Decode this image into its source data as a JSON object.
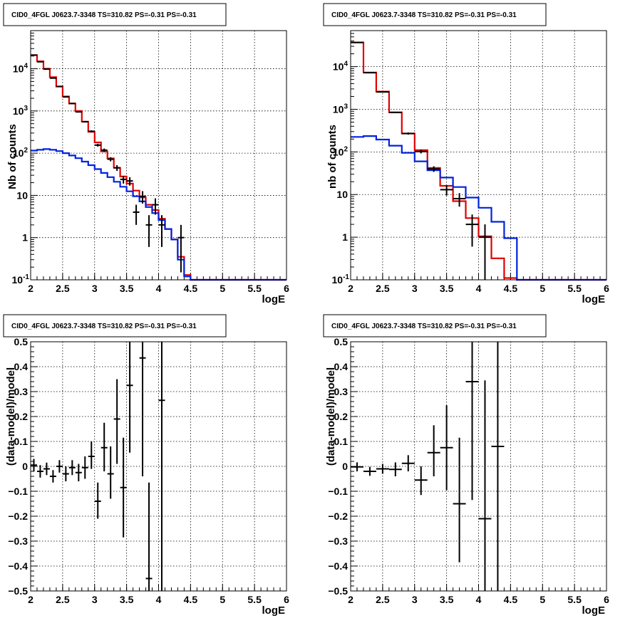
{
  "pad_title": "CID0_4FGL J0623.7-3348 TS=310.82 PS=-0.31 PS=-0.31",
  "colors": {
    "data": "#000000",
    "total_model": "#e00000",
    "background_model": "#0022dd"
  },
  "chart_data": [
    {
      "type": "line",
      "panel": "top-left",
      "title": "CID0_4FGL J0623.7-3348 TS=310.82 PS=-0.31 PS=-0.31",
      "xlabel": "logE",
      "ylabel": "Nb of counts",
      "xlim": [
        2,
        6
      ],
      "ylim": [
        0.1,
        80000
      ],
      "log_y": true,
      "grid": true,
      "x_ticks": [
        "2",
        "2.5",
        "3",
        "3.5",
        "4",
        "4.5",
        "5",
        "5.5",
        "6"
      ],
      "y_ticks": [
        {
          "v": 0.1,
          "base": "10",
          "exp": "-1"
        },
        {
          "v": 1,
          "label": "1"
        },
        {
          "v": 10,
          "label": "10"
        },
        {
          "v": 100,
          "base": "10",
          "exp": "2"
        },
        {
          "v": 1000,
          "base": "10",
          "exp": "3"
        },
        {
          "v": 10000,
          "base": "10",
          "exp": "4"
        }
      ],
      "bin_edges": [
        2.0,
        2.1,
        2.2,
        2.3,
        2.4,
        2.5,
        2.6,
        2.7,
        2.8,
        2.9,
        3.0,
        3.1,
        3.2,
        3.3,
        3.4,
        3.5,
        3.6,
        3.7,
        3.8,
        3.9,
        4.0,
        4.1,
        4.2,
        4.3,
        4.4,
        4.5,
        4.6,
        4.7,
        4.8,
        4.9,
        5.0,
        5.1,
        5.2,
        5.3,
        5.4,
        5.5,
        5.6,
        5.7,
        5.8,
        5.9,
        6.0
      ],
      "series": [
        {
          "role": "total_model",
          "kind": "hist",
          "values": [
            21000,
            15000,
            10000,
            6300,
            3800,
            2200,
            1500,
            1000,
            560,
            320,
            180,
            110,
            75,
            45,
            28,
            19,
            13,
            9,
            6,
            4.5,
            2.8,
            1.6,
            0.9,
            0.35,
            0.13,
            0.1,
            0.1,
            0.1,
            0.1,
            0.1,
            0.1,
            0.1,
            0.1,
            0.1,
            0.1,
            0.1,
            0.1,
            0.1,
            0.1,
            0.1
          ]
        },
        {
          "role": "background_model",
          "kind": "hist",
          "values": [
            115,
            120,
            125,
            120,
            112,
            100,
            88,
            76,
            63,
            52,
            42,
            34,
            27,
            21,
            16,
            12.5,
            9.5,
            7.2,
            5.3,
            3.8,
            2.6,
            1.6,
            0.9,
            0.3,
            0.12,
            0.1,
            0.1,
            0.1,
            0.1,
            0.1,
            0.1,
            0.1,
            0.1,
            0.1,
            0.1,
            0.1,
            0.1,
            0.1,
            0.1,
            0.1
          ]
        },
        {
          "role": "data",
          "kind": "points",
          "points": [
            {
              "x": 2.05,
              "y": 21000,
              "lo": 20800,
              "hi": 21200
            },
            {
              "x": 2.15,
              "y": 14600,
              "lo": 14450,
              "hi": 14750
            },
            {
              "x": 2.25,
              "y": 9800,
              "lo": 9700,
              "hi": 9900
            },
            {
              "x": 2.35,
              "y": 6000,
              "lo": 5920,
              "hi": 6080
            },
            {
              "x": 2.45,
              "y": 3800,
              "lo": 3740,
              "hi": 3860
            },
            {
              "x": 2.55,
              "y": 2150,
              "lo": 2100,
              "hi": 2200
            },
            {
              "x": 2.65,
              "y": 1500,
              "lo": 1460,
              "hi": 1540
            },
            {
              "x": 2.75,
              "y": 950,
              "lo": 920,
              "hi": 980
            },
            {
              "x": 2.85,
              "y": 555,
              "lo": 530,
              "hi": 580
            },
            {
              "x": 2.95,
              "y": 330,
              "lo": 312,
              "hi": 348
            },
            {
              "x": 3.05,
              "y": 155,
              "lo": 143,
              "hi": 167
            },
            {
              "x": 3.15,
              "y": 118,
              "lo": 107,
              "hi": 129
            },
            {
              "x": 3.25,
              "y": 72,
              "lo": 64,
              "hi": 80
            },
            {
              "x": 3.35,
              "y": 45,
              "lo": 38,
              "hi": 52
            },
            {
              "x": 3.45,
              "y": 24,
              "lo": 19,
              "hi": 29
            },
            {
              "x": 3.55,
              "y": 22,
              "lo": 17,
              "hi": 27
            },
            {
              "x": 3.65,
              "y": 4,
              "lo": 2,
              "hi": 6
            },
            {
              "x": 3.75,
              "y": 9.5,
              "lo": 6.4,
              "hi": 12.6
            },
            {
              "x": 3.85,
              "y": 2,
              "lo": 0.6,
              "hi": 3.4
            },
            {
              "x": 3.95,
              "y": 6,
              "lo": 3.5,
              "hi": 8.5
            },
            {
              "x": 4.05,
              "y": 2,
              "lo": 0.6,
              "hi": 3.4
            },
            {
              "x": 4.35,
              "y": 1,
              "lo": 0.15,
              "hi": 2
            }
          ]
        }
      ]
    },
    {
      "type": "line",
      "panel": "top-right",
      "title": "CID0_4FGL J0623.7-3348 TS=310.82 PS=-0.31 PS=-0.31",
      "xlabel": "logE",
      "ylabel": "nb of counts",
      "xlim": [
        2,
        6
      ],
      "ylim": [
        0.1,
        70000
      ],
      "log_y": true,
      "grid": true,
      "x_ticks": [
        "2",
        "2.5",
        "3",
        "3.5",
        "4",
        "4.5",
        "5",
        "5.5",
        "6"
      ],
      "y_ticks": [
        {
          "v": 0.1,
          "base": "10",
          "exp": "-1"
        },
        {
          "v": 1,
          "label": "1"
        },
        {
          "v": 10,
          "label": "10"
        },
        {
          "v": 100,
          "base": "10",
          "exp": "2"
        },
        {
          "v": 1000,
          "base": "10",
          "exp": "3"
        },
        {
          "v": 10000,
          "base": "10",
          "exp": "4"
        }
      ],
      "bin_edges": [
        2.0,
        2.2,
        2.4,
        2.6,
        2.8,
        3.0,
        3.2,
        3.4,
        3.6,
        3.8,
        4.0,
        4.2,
        4.4,
        4.6,
        4.8,
        5.0,
        5.2,
        5.4,
        5.6,
        5.8,
        6.0
      ],
      "series": [
        {
          "role": "total_model",
          "kind": "hist",
          "values": [
            37000,
            7300,
            2600,
            850,
            270,
            110,
            42,
            16,
            7,
            2.8,
            1.05,
            0.32,
            0.11,
            0.1,
            0.1,
            0.1,
            0.1,
            0.1,
            0.1,
            0.1
          ]
        },
        {
          "role": "background_model",
          "kind": "hist",
          "values": [
            225,
            235,
            195,
            140,
            95,
            60,
            37,
            25,
            15,
            8.5,
            4.9,
            2.3,
            0.95,
            0.1,
            0.1,
            0.1,
            0.1,
            0.1,
            0.1,
            0.1
          ]
        },
        {
          "role": "data",
          "kind": "points",
          "points": [
            {
              "x": 2.1,
              "y": 37000,
              "lo": 36800,
              "hi": 37200
            },
            {
              "x": 2.3,
              "y": 7200,
              "lo": 7120,
              "hi": 7280
            },
            {
              "x": 2.5,
              "y": 2550,
              "lo": 2500,
              "hi": 2600
            },
            {
              "x": 2.7,
              "y": 840,
              "lo": 812,
              "hi": 868
            },
            {
              "x": 2.9,
              "y": 270,
              "lo": 254,
              "hi": 286
            },
            {
              "x": 3.1,
              "y": 102,
              "lo": 92,
              "hi": 112
            },
            {
              "x": 3.3,
              "y": 40,
              "lo": 34,
              "hi": 46
            },
            {
              "x": 3.5,
              "y": 13,
              "lo": 9.5,
              "hi": 16.5
            },
            {
              "x": 3.7,
              "y": 8,
              "lo": 5.2,
              "hi": 10.8
            },
            {
              "x": 3.9,
              "y": 2,
              "lo": 0.6,
              "hi": 3.4
            },
            {
              "x": 4.1,
              "y": 1,
              "lo": 0.1,
              "hi": 2
            }
          ]
        }
      ]
    },
    {
      "type": "scatter",
      "panel": "bottom-left",
      "title": "CID0_4FGL J0623.7-3348 TS=310.82 PS=-0.31 PS=-0.31",
      "xlabel": "logE",
      "ylabel": "(data-model)/model",
      "xlim": [
        2,
        6
      ],
      "ylim": [
        -0.5,
        0.5
      ],
      "log_y": false,
      "grid": true,
      "x_ticks": [
        "2",
        "2.5",
        "3",
        "3.5",
        "4",
        "4.5",
        "5",
        "5.5",
        "6"
      ],
      "y_ticks": [
        {
          "v": -0.5,
          "label": "−0.5"
        },
        {
          "v": -0.4,
          "label": "−0.4"
        },
        {
          "v": -0.3,
          "label": "−0.3"
        },
        {
          "v": -0.2,
          "label": "−0.2"
        },
        {
          "v": -0.1,
          "label": "−0.1"
        },
        {
          "v": 0,
          "label": "0"
        },
        {
          "v": 0.1,
          "label": "0.1"
        },
        {
          "v": 0.2,
          "label": "0.2"
        },
        {
          "v": 0.3,
          "label": "0.3"
        },
        {
          "v": 0.4,
          "label": "0.4"
        },
        {
          "v": 0.5,
          "label": "0.5"
        }
      ],
      "xerr": 0.05,
      "series": [
        {
          "role": "data",
          "kind": "points",
          "points": [
            {
              "x": 2.05,
              "y": 0.005,
              "lo": -0.02,
              "hi": 0.03
            },
            {
              "x": 2.15,
              "y": -0.02,
              "lo": -0.045,
              "hi": 0.005
            },
            {
              "x": 2.25,
              "y": -0.01,
              "lo": -0.035,
              "hi": 0.015
            },
            {
              "x": 2.35,
              "y": -0.04,
              "lo": -0.065,
              "hi": -0.015
            },
            {
              "x": 2.45,
              "y": 0.0,
              "lo": -0.025,
              "hi": 0.025
            },
            {
              "x": 2.55,
              "y": -0.03,
              "lo": -0.06,
              "hi": 0.0
            },
            {
              "x": 2.65,
              "y": -0.005,
              "lo": -0.035,
              "hi": 0.025
            },
            {
              "x": 2.75,
              "y": -0.025,
              "lo": -0.06,
              "hi": 0.01
            },
            {
              "x": 2.85,
              "y": -0.005,
              "lo": -0.05,
              "hi": 0.04
            },
            {
              "x": 2.95,
              "y": 0.04,
              "lo": -0.01,
              "hi": 0.1
            },
            {
              "x": 3.05,
              "y": -0.14,
              "lo": -0.21,
              "hi": -0.065
            },
            {
              "x": 3.15,
              "y": 0.075,
              "lo": -0.02,
              "hi": 0.175
            },
            {
              "x": 3.25,
              "y": -0.03,
              "lo": -0.13,
              "hi": 0.08
            },
            {
              "x": 3.35,
              "y": 0.19,
              "lo": 0.01,
              "hi": 0.35
            },
            {
              "x": 3.45,
              "y": -0.085,
              "lo": -0.285,
              "hi": 0.115
            },
            {
              "x": 3.55,
              "y": 0.325,
              "lo": 0.055,
              "hi": 0.5
            },
            {
              "x": 3.75,
              "y": 0.435,
              "lo": -0.04,
              "hi": 0.5
            },
            {
              "x": 3.85,
              "y": -0.45,
              "lo": -0.5,
              "hi": -0.065
            },
            {
              "x": 4.05,
              "y": 0.265,
              "lo": -0.5,
              "hi": 0.5
            }
          ]
        }
      ]
    },
    {
      "type": "scatter",
      "panel": "bottom-right",
      "title": "CID0_4FGL J0623.7-3348 TS=310.82 PS=-0.31 PS=-0.31",
      "xlabel": "logE",
      "ylabel": "(data-model)/model",
      "xlim": [
        2,
        6
      ],
      "ylim": [
        -0.5,
        0.5
      ],
      "log_y": false,
      "grid": true,
      "x_ticks": [
        "2",
        "2.5",
        "3",
        "3.5",
        "4",
        "4.5",
        "5",
        "5.5",
        "6"
      ],
      "y_ticks": [
        {
          "v": -0.5,
          "label": "−0.5"
        },
        {
          "v": -0.4,
          "label": "−0.4"
        },
        {
          "v": -0.3,
          "label": "−0.3"
        },
        {
          "v": -0.2,
          "label": "−0.2"
        },
        {
          "v": -0.1,
          "label": "−0.1"
        },
        {
          "v": 0,
          "label": "0"
        },
        {
          "v": 0.1,
          "label": "0.1"
        },
        {
          "v": 0.2,
          "label": "0.2"
        },
        {
          "v": 0.3,
          "label": "0.3"
        },
        {
          "v": 0.4,
          "label": "0.4"
        },
        {
          "v": 0.5,
          "label": "0.5"
        }
      ],
      "xerr": 0.1,
      "series": [
        {
          "role": "data",
          "kind": "points",
          "points": [
            {
              "x": 2.1,
              "y": -0.002,
              "lo": -0.02,
              "hi": 0.016
            },
            {
              "x": 2.3,
              "y": -0.02,
              "lo": -0.038,
              "hi": -0.002
            },
            {
              "x": 2.5,
              "y": -0.01,
              "lo": -0.03,
              "hi": 0.01
            },
            {
              "x": 2.7,
              "y": -0.012,
              "lo": -0.04,
              "hi": 0.016
            },
            {
              "x": 2.9,
              "y": 0.012,
              "lo": -0.02,
              "hi": 0.045
            },
            {
              "x": 3.1,
              "y": -0.055,
              "lo": -0.115,
              "hi": 0.0
            },
            {
              "x": 3.3,
              "y": 0.055,
              "lo": -0.04,
              "hi": 0.165
            },
            {
              "x": 3.5,
              "y": 0.075,
              "lo": -0.095,
              "hi": 0.245
            },
            {
              "x": 3.7,
              "y": -0.15,
              "lo": -0.385,
              "hi": 0.115
            },
            {
              "x": 3.9,
              "y": 0.34,
              "lo": -0.135,
              "hi": 0.5
            },
            {
              "x": 4.1,
              "y": -0.21,
              "lo": -0.5,
              "hi": 0.345
            },
            {
              "x": 4.3,
              "y": 0.08,
              "lo": -0.5,
              "hi": 0.5
            }
          ]
        }
      ]
    }
  ]
}
